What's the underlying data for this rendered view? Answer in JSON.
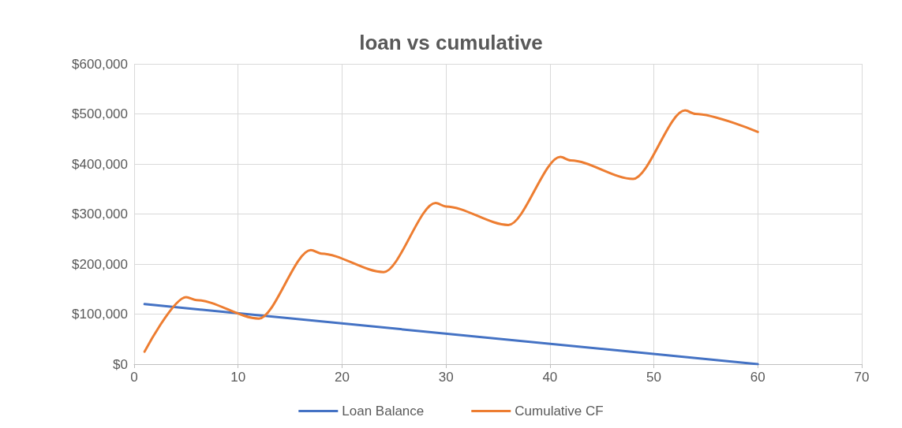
{
  "chart_data": {
    "type": "line",
    "title": "loan vs cumulative",
    "series": [
      {
        "name": "Loan Balance",
        "color": "#4472c4",
        "x": [
          1,
          60
        ],
        "values": [
          120000,
          0
        ]
      },
      {
        "name": "Cumulative CF",
        "color": "#ed7d31",
        "x": [
          1,
          5,
          6,
          12,
          17,
          18,
          24,
          29,
          30,
          36,
          41,
          42,
          48,
          53,
          54,
          60
        ],
        "values": [
          25000,
          134000,
          128000,
          91000,
          228000,
          221000,
          184000,
          322000,
          315000,
          278000,
          414000,
          407000,
          370000,
          507000,
          500000,
          464000
        ]
      }
    ],
    "xlim": [
      0,
      70
    ],
    "xticks": [
      0,
      10,
      20,
      30,
      40,
      50,
      60,
      70
    ],
    "ylim": [
      0,
      600000
    ],
    "yticks": [
      {
        "value": 0,
        "label": "$0"
      },
      {
        "value": 100000,
        "label": "$100,000"
      },
      {
        "value": 200000,
        "label": "$200,000"
      },
      {
        "value": 300000,
        "label": "$300,000"
      },
      {
        "value": 400000,
        "label": "$400,000"
      },
      {
        "value": 500000,
        "label": "$500,000"
      },
      {
        "value": 600000,
        "label": "$600,000"
      }
    ],
    "grid": true,
    "legend": "bottom",
    "marker": "none",
    "line_style": "solid"
  }
}
